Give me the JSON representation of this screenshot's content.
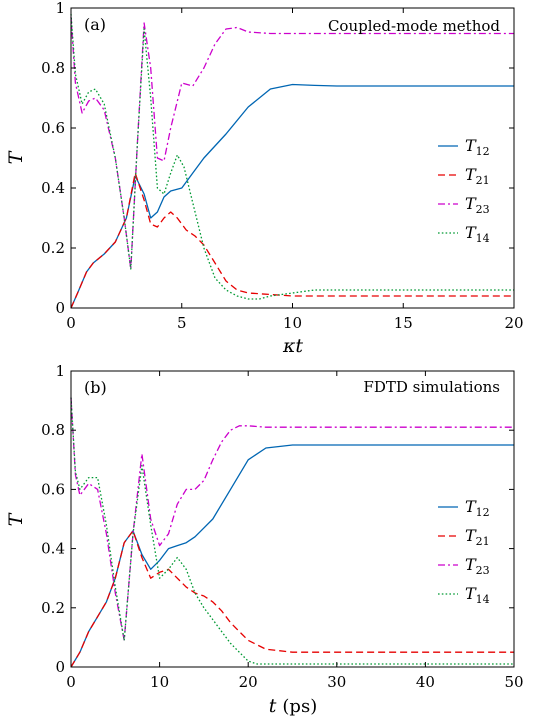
{
  "colors": {
    "T12": "#0066b3",
    "T21": "#e60000",
    "T23": "#cc00cc",
    "T14": "#009933"
  },
  "chart_data": [
    {
      "type": "line",
      "panel_tag": "(a)",
      "title": "Coupled-mode method",
      "ylabel": "T",
      "xlabel": "κt",
      "xlim": [
        0,
        20
      ],
      "ylim": [
        0,
        1
      ],
      "xticks": [
        0,
        5,
        10,
        15,
        20
      ],
      "yticks": [
        0,
        0.2,
        0.4,
        0.6,
        0.8,
        1
      ],
      "ytick_labels": [
        "0",
        "0.2",
        "0.4",
        "0.6",
        "0.8",
        "1"
      ],
      "legend": "center-right",
      "series": [
        {
          "name": "T12",
          "label_main": "T",
          "label_sub": "12",
          "style": "solid",
          "color": "#0066b3",
          "x": [
            0,
            0.3,
            0.7,
            1,
            1.5,
            2,
            2.5,
            2.9,
            3.3,
            3.6,
            3.9,
            4.2,
            4.5,
            5,
            5.5,
            6,
            7,
            8,
            9,
            10,
            11,
            12,
            15,
            20
          ],
          "y": [
            0,
            0.05,
            0.12,
            0.15,
            0.18,
            0.22,
            0.3,
            0.44,
            0.38,
            0.3,
            0.32,
            0.37,
            0.39,
            0.4,
            0.45,
            0.5,
            0.58,
            0.67,
            0.73,
            0.745,
            0.742,
            0.74,
            0.74,
            0.74
          ]
        },
        {
          "name": "T21",
          "label_main": "T",
          "label_sub": "21",
          "style": "dashed",
          "color": "#e60000",
          "x": [
            0,
            0.3,
            0.7,
            1,
            1.5,
            2,
            2.5,
            2.9,
            3.3,
            3.6,
            3.9,
            4.2,
            4.5,
            4.8,
            5.2,
            5.6,
            6,
            6.5,
            7,
            7.5,
            8,
            9,
            10,
            12,
            15,
            20
          ],
          "y": [
            0,
            0.05,
            0.12,
            0.15,
            0.18,
            0.22,
            0.3,
            0.45,
            0.36,
            0.28,
            0.27,
            0.3,
            0.32,
            0.3,
            0.26,
            0.24,
            0.21,
            0.15,
            0.09,
            0.06,
            0.05,
            0.045,
            0.04,
            0.04,
            0.04,
            0.04
          ]
        },
        {
          "name": "T23",
          "label_main": "T",
          "label_sub": "23",
          "style": "dashdot",
          "color": "#cc00cc",
          "x": [
            0,
            0.2,
            0.5,
            0.8,
            1.1,
            1.5,
            2,
            2.4,
            2.7,
            3,
            3.3,
            3.6,
            3.9,
            4.2,
            4.5,
            5,
            5.5,
            6,
            6.5,
            7,
            7.5,
            8,
            9,
            10,
            12,
            15,
            20
          ],
          "y": [
            0.97,
            0.75,
            0.65,
            0.69,
            0.7,
            0.66,
            0.5,
            0.3,
            0.13,
            0.55,
            0.95,
            0.8,
            0.5,
            0.49,
            0.6,
            0.75,
            0.74,
            0.8,
            0.88,
            0.93,
            0.935,
            0.92,
            0.915,
            0.915,
            0.915,
            0.915,
            0.915
          ]
        },
        {
          "name": "T14",
          "label_main": "T",
          "label_sub": "14",
          "style": "dotted",
          "color": "#009933",
          "x": [
            0,
            0.2,
            0.5,
            0.8,
            1.1,
            1.5,
            2,
            2.4,
            2.7,
            3,
            3.3,
            3.6,
            3.9,
            4.2,
            4.5,
            4.8,
            5.1,
            5.4,
            6,
            6.5,
            7,
            7.5,
            8,
            8.5,
            9,
            10,
            11,
            12,
            15,
            20
          ],
          "y": [
            0.98,
            0.78,
            0.68,
            0.72,
            0.73,
            0.68,
            0.5,
            0.3,
            0.13,
            0.55,
            0.93,
            0.7,
            0.4,
            0.38,
            0.45,
            0.51,
            0.47,
            0.38,
            0.2,
            0.1,
            0.06,
            0.04,
            0.03,
            0.03,
            0.04,
            0.05,
            0.06,
            0.06,
            0.06,
            0.06
          ]
        }
      ]
    },
    {
      "type": "line",
      "panel_tag": "(b)",
      "title": "FDTD simulations",
      "ylabel": "T",
      "xlabel_main": "t",
      "xlabel_unit": "(ps)",
      "xlim": [
        0,
        50
      ],
      "ylim": [
        0,
        1
      ],
      "xticks": [
        0,
        10,
        20,
        30,
        40,
        50
      ],
      "yticks": [
        0,
        0.2,
        0.4,
        0.6,
        0.8,
        1
      ],
      "ytick_labels": [
        "0",
        "0.2",
        "0.4",
        "0.6",
        "0.8",
        "1"
      ],
      "legend": "center-right",
      "series": [
        {
          "name": "T12",
          "label_main": "T",
          "label_sub": "12",
          "style": "solid",
          "color": "#0066b3",
          "x": [
            0,
            1,
            2,
            3,
            4,
            5,
            6,
            7,
            8,
            9,
            10,
            11,
            12,
            13,
            14,
            15,
            16,
            18,
            20,
            22,
            25,
            30,
            40,
            50
          ],
          "y": [
            0,
            0.05,
            0.12,
            0.17,
            0.22,
            0.3,
            0.42,
            0.46,
            0.38,
            0.33,
            0.36,
            0.4,
            0.41,
            0.42,
            0.44,
            0.47,
            0.5,
            0.6,
            0.7,
            0.74,
            0.75,
            0.75,
            0.75,
            0.75
          ]
        },
        {
          "name": "T21",
          "label_main": "T",
          "label_sub": "21",
          "style": "dashed",
          "color": "#e60000",
          "x": [
            0,
            1,
            2,
            3,
            4,
            5,
            6,
            7,
            8,
            9,
            10,
            11,
            12,
            13,
            14,
            15,
            16,
            17,
            18,
            19,
            20,
            22,
            25,
            30,
            40,
            50
          ],
          "y": [
            0,
            0.05,
            0.12,
            0.17,
            0.22,
            0.3,
            0.42,
            0.46,
            0.37,
            0.3,
            0.32,
            0.33,
            0.3,
            0.27,
            0.25,
            0.24,
            0.22,
            0.19,
            0.15,
            0.12,
            0.09,
            0.06,
            0.05,
            0.05,
            0.05,
            0.05
          ]
        },
        {
          "name": "T23",
          "label_main": "T",
          "label_sub": "23",
          "style": "dashdot",
          "color": "#cc00cc",
          "x": [
            0,
            0.5,
            1,
            2,
            3,
            4,
            5,
            6,
            7,
            8,
            9,
            10,
            11,
            12,
            13,
            14,
            15,
            16,
            17,
            18,
            19,
            20,
            22,
            25,
            30,
            40,
            50
          ],
          "y": [
            0.91,
            0.65,
            0.58,
            0.62,
            0.6,
            0.45,
            0.25,
            0.09,
            0.45,
            0.72,
            0.5,
            0.41,
            0.45,
            0.55,
            0.6,
            0.6,
            0.63,
            0.7,
            0.76,
            0.8,
            0.815,
            0.815,
            0.81,
            0.81,
            0.81,
            0.81,
            0.81
          ]
        },
        {
          "name": "T14",
          "label_main": "T",
          "label_sub": "14",
          "style": "dotted",
          "color": "#009933",
          "x": [
            0,
            0.5,
            1,
            2,
            3,
            4,
            5,
            6,
            7,
            8,
            9,
            10,
            11,
            12,
            13,
            14,
            15,
            16,
            17,
            18,
            19,
            20,
            21,
            22,
            25,
            30,
            40,
            50
          ],
          "y": [
            0.91,
            0.66,
            0.6,
            0.64,
            0.64,
            0.48,
            0.27,
            0.09,
            0.45,
            0.68,
            0.48,
            0.3,
            0.33,
            0.37,
            0.33,
            0.25,
            0.2,
            0.16,
            0.12,
            0.08,
            0.05,
            0.02,
            0.01,
            0.01,
            0.01,
            0.01,
            0.01,
            0.01
          ]
        }
      ]
    }
  ]
}
